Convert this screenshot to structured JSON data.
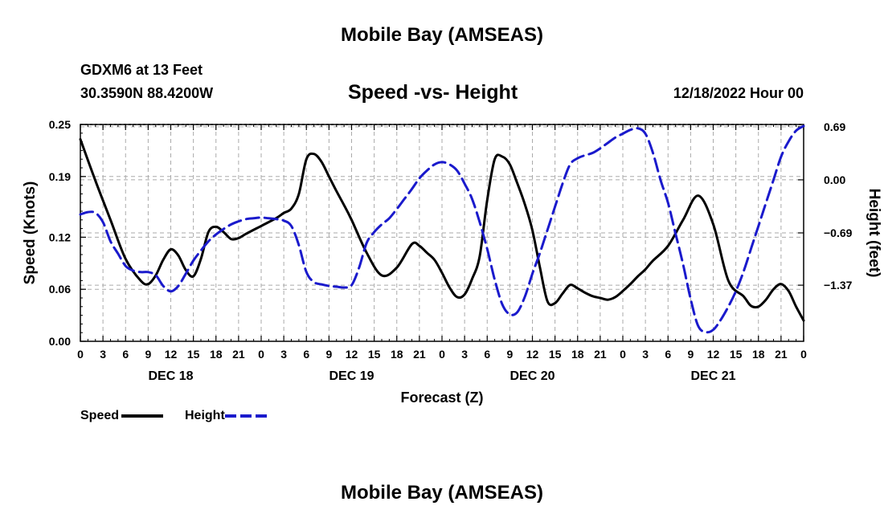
{
  "header": {
    "title": "Mobile Bay (AMSEAS)",
    "station": "GDXM6 at 13 Feet",
    "coords": "30.3590N  88.4200W",
    "subtitle": "Speed -vs- Height",
    "datetime": "12/18/2022 Hour 00"
  },
  "footer": {
    "title": "Mobile Bay (AMSEAS)"
  },
  "legend": {
    "speed_label": "Speed",
    "height_label": "Height"
  },
  "colors": {
    "speed": "#000000",
    "height": "#1a1acc",
    "grid": "#aaaaaa"
  },
  "chart_data": {
    "type": "line",
    "title": "Speed -vs- Height",
    "xlabel": "Forecast (Z)",
    "ylabel": "Speed (Knots)",
    "y2label": "Height (feet)",
    "xlim": [
      0,
      96
    ],
    "ylim": [
      0,
      0.25
    ],
    "y2lim": [
      -2.1,
      0.72
    ],
    "x_ticks": [
      0,
      3,
      6,
      9,
      12,
      15,
      18,
      21,
      24,
      27,
      30,
      33,
      36,
      39,
      42,
      45,
      48,
      51,
      54,
      57,
      60,
      63,
      66,
      69,
      72,
      75,
      78,
      81,
      84,
      87,
      90,
      93,
      96
    ],
    "x_tick_labels": [
      "0",
      "3",
      "6",
      "9",
      "12",
      "15",
      "18",
      "21",
      "0",
      "3",
      "6",
      "9",
      "12",
      "15",
      "18",
      "21",
      "0",
      "3",
      "6",
      "9",
      "12",
      "15",
      "18",
      "21",
      "0",
      "3",
      "6",
      "9",
      "12",
      "15",
      "18",
      "21",
      "0"
    ],
    "day_labels": [
      {
        "x": 12,
        "label": "DEC 18"
      },
      {
        "x": 36,
        "label": "DEC 19"
      },
      {
        "x": 60,
        "label": "DEC 20"
      },
      {
        "x": 84,
        "label": "DEC 21"
      }
    ],
    "y_ticks": [
      0.0,
      0.06,
      0.12,
      0.19,
      0.25
    ],
    "y_tick_labels": [
      "0.00",
      "0.06",
      "0.12",
      "0.19",
      "0.25"
    ],
    "y2_ticks": [
      0.69,
      0.0,
      -0.69,
      -1.37
    ],
    "y2_tick_labels": [
      "0.69",
      "0.00",
      "−0.69",
      "−1.37"
    ],
    "series": [
      {
        "name": "Speed",
        "axis": "left",
        "x": [
          0,
          2,
          4,
          6,
          8,
          9,
          10,
          11,
          12,
          13,
          14,
          15,
          16,
          17,
          18,
          19,
          20,
          21,
          22,
          24,
          26,
          27,
          28,
          29,
          30,
          31,
          32,
          33,
          34,
          35,
          36,
          38,
          40,
          42,
          44,
          45,
          46,
          47,
          48,
          49,
          50,
          51,
          52,
          53,
          54,
          55,
          56,
          57,
          58,
          59,
          60,
          61,
          62,
          63,
          64,
          65,
          66,
          67,
          68,
          69,
          70,
          71,
          72,
          73,
          74,
          75,
          76,
          78,
          80,
          82,
          84,
          86,
          88,
          89,
          90,
          91,
          92,
          93,
          94,
          95,
          96
        ],
        "values": [
          0.233,
          0.185,
          0.14,
          0.095,
          0.07,
          0.066,
          0.076,
          0.094,
          0.106,
          0.099,
          0.082,
          0.075,
          0.095,
          0.126,
          0.132,
          0.126,
          0.118,
          0.119,
          0.124,
          0.133,
          0.142,
          0.148,
          0.153,
          0.17,
          0.21,
          0.216,
          0.207,
          0.19,
          0.173,
          0.157,
          0.14,
          0.102,
          0.076,
          0.085,
          0.112,
          0.11,
          0.102,
          0.094,
          0.079,
          0.062,
          0.051,
          0.054,
          0.072,
          0.098,
          0.163,
          0.21,
          0.213,
          0.204,
          0.182,
          0.158,
          0.128,
          0.085,
          0.046,
          0.044,
          0.055,
          0.065,
          0.061,
          0.056,
          0.052,
          0.05,
          0.048,
          0.051,
          0.058,
          0.066,
          0.075,
          0.083,
          0.093,
          0.11,
          0.14,
          0.168,
          0.135,
          0.07,
          0.052,
          0.041,
          0.04,
          0.048,
          0.06,
          0.066,
          0.058,
          0.04,
          0.024
        ]
      },
      {
        "name": "Height",
        "axis": "right",
        "x": [
          0,
          1,
          2,
          3,
          4,
          5,
          6,
          7,
          8,
          9,
          10,
          11,
          12,
          13,
          14,
          15,
          16,
          17,
          18,
          19,
          20,
          21,
          22,
          23,
          24,
          25,
          26,
          27,
          28,
          29,
          30,
          31,
          32,
          33,
          34,
          35,
          36,
          37,
          38,
          39,
          40,
          41,
          42,
          43,
          44,
          45,
          46,
          47,
          48,
          49,
          50,
          51,
          52,
          53,
          54,
          55,
          56,
          57,
          58,
          59,
          60,
          61,
          62,
          63,
          64,
          65,
          66,
          67,
          68,
          69,
          70,
          71,
          72,
          73,
          74,
          75,
          76,
          77,
          78,
          79,
          80,
          81,
          82,
          83,
          84,
          85,
          86,
          87,
          88,
          89,
          90,
          91,
          92,
          93,
          94,
          95,
          96
        ],
        "values": [
          -0.45,
          -0.42,
          -0.43,
          -0.55,
          -0.8,
          -0.96,
          -1.12,
          -1.18,
          -1.2,
          -1.2,
          -1.24,
          -1.38,
          -1.45,
          -1.38,
          -1.22,
          -1.05,
          -0.92,
          -0.8,
          -0.71,
          -0.64,
          -0.58,
          -0.54,
          -0.51,
          -0.5,
          -0.49,
          -0.5,
          -0.51,
          -0.53,
          -0.6,
          -0.85,
          -1.2,
          -1.33,
          -1.36,
          -1.38,
          -1.39,
          -1.4,
          -1.37,
          -1.14,
          -0.82,
          -0.68,
          -0.58,
          -0.5,
          -0.38,
          -0.25,
          -0.12,
          0.02,
          0.12,
          0.2,
          0.23,
          0.2,
          0.12,
          -0.05,
          -0.25,
          -0.55,
          -0.9,
          -1.3,
          -1.62,
          -1.75,
          -1.72,
          -1.52,
          -1.22,
          -0.95,
          -0.65,
          -0.35,
          -0.05,
          0.2,
          0.28,
          0.32,
          0.35,
          0.41,
          0.48,
          0.55,
          0.6,
          0.65,
          0.67,
          0.6,
          0.35,
          0.0,
          -0.3,
          -0.7,
          -1.1,
          -1.55,
          -1.9,
          -1.98,
          -1.95,
          -1.82,
          -1.65,
          -1.45,
          -1.2,
          -0.9,
          -0.6,
          -0.3,
          0.0,
          0.3,
          0.5,
          0.64,
          0.7
        ]
      }
    ]
  }
}
